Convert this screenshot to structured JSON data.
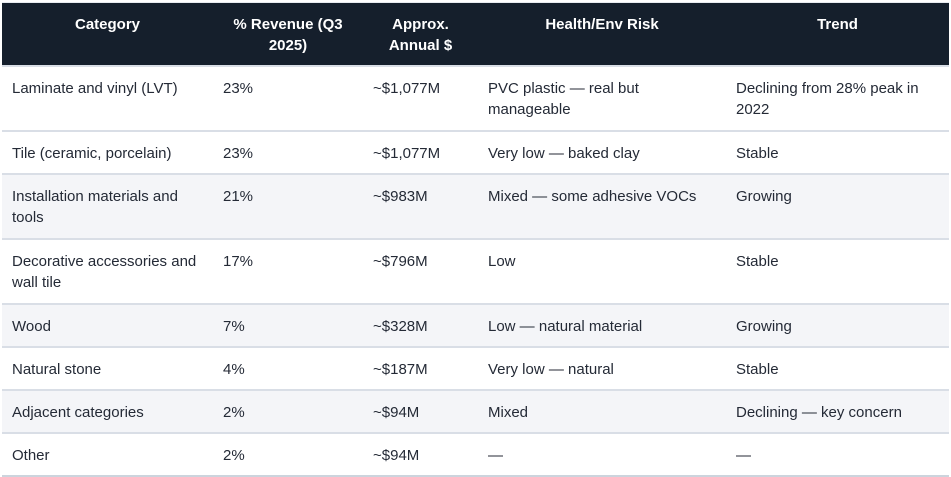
{
  "table": {
    "columns": [
      {
        "label": "Category"
      },
      {
        "label": "% Revenue (Q3 2025)"
      },
      {
        "label": "Approx. Annual $"
      },
      {
        "label": "Health/Env Risk"
      },
      {
        "label": "Trend"
      }
    ],
    "rows": [
      {
        "tall": true,
        "cells": [
          "Laminate and vinyl (LVT)",
          "23%",
          "~$1,077M",
          "PVC plastic — real but manageable",
          "Declining from 28% peak in 2022"
        ]
      },
      {
        "tall": false,
        "cells": [
          "Tile (ceramic, porcelain)",
          "23%",
          "~$1,077M",
          "Very low — baked clay",
          "Stable"
        ]
      },
      {
        "tall": true,
        "cells": [
          "Installation materials and tools",
          "21%",
          "~$983M",
          "Mixed — some adhesive VOCs",
          "Growing"
        ]
      },
      {
        "tall": true,
        "cells": [
          "Decorative accessories and wall tile",
          "17%",
          "~$796M",
          "Low",
          "Stable"
        ]
      },
      {
        "tall": false,
        "cells": [
          "Wood",
          "7%",
          "~$328M",
          "Low — natural material",
          "Growing"
        ]
      },
      {
        "tall": false,
        "cells": [
          "Natural stone",
          "4%",
          "~$187M",
          "Very low — natural",
          "Stable"
        ]
      },
      {
        "tall": false,
        "cells": [
          "Adjacent categories",
          "2%",
          "~$94M",
          "Mixed",
          "Declining — key concern"
        ]
      },
      {
        "tall": false,
        "cells": [
          "Other",
          "2%",
          "~$94M",
          "—",
          "—"
        ]
      }
    ]
  },
  "colors": {
    "header_bg": "#151f2c",
    "header_text": "#ffffff",
    "row_text": "#242a36",
    "stripe_bg": "#f4f5f8",
    "divider": "#d9dee6"
  }
}
